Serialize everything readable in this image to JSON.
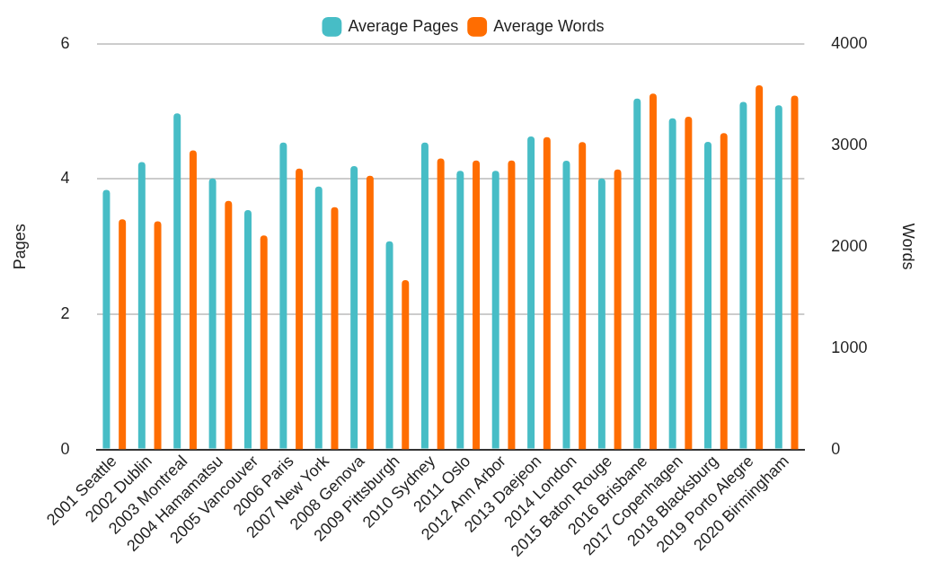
{
  "chart_data": {
    "type": "bar",
    "categories": [
      "2001 Seattle",
      "2002 Dublin",
      "2003 Montreal",
      "2004 Hamamatsu",
      "2005 Vancouver",
      "2006 Paris",
      "2007 New York",
      "2008 Genova",
      "2009 Pittsburgh",
      "2010 Sydney",
      "2011 Oslo",
      "2012 Ann Arbor",
      "2013 Daejeon",
      "2014 London",
      "2015 Baton Rouge",
      "2016 Brisbane",
      "2017 Copenhagen",
      "2018 Blacksburg",
      "2019 Porto Alegre",
      "2020 Birmingham"
    ],
    "series": [
      {
        "name": "Average Pages",
        "color": "#47bdc6",
        "values": [
          3.84,
          4.25,
          4.97,
          4.01,
          3.54,
          4.54,
          3.89,
          4.19,
          3.08,
          4.54,
          4.12,
          4.12,
          4.63,
          4.27,
          4.01,
          5.19,
          4.9,
          4.55,
          5.14,
          5.09
        ]
      },
      {
        "name": "Average Words",
        "color": "#ff6d01",
        "axis": "y2",
        "values": [
          2270,
          2250,
          2950,
          2450,
          2110,
          2770,
          2390,
          2700,
          1670,
          2870,
          2850,
          2850,
          3080,
          3030,
          2760,
          3510,
          3280,
          3120,
          3590,
          3490
        ]
      }
    ],
    "ylabel": "Pages",
    "y2label": "Words",
    "ylim": [
      0,
      6
    ],
    "yticks": [
      0,
      2,
      4,
      6
    ],
    "y2lim": [
      0,
      4000
    ],
    "y2ticks": [
      0,
      1000,
      2000,
      3000,
      4000
    ],
    "grid": "y",
    "legend": "top"
  }
}
